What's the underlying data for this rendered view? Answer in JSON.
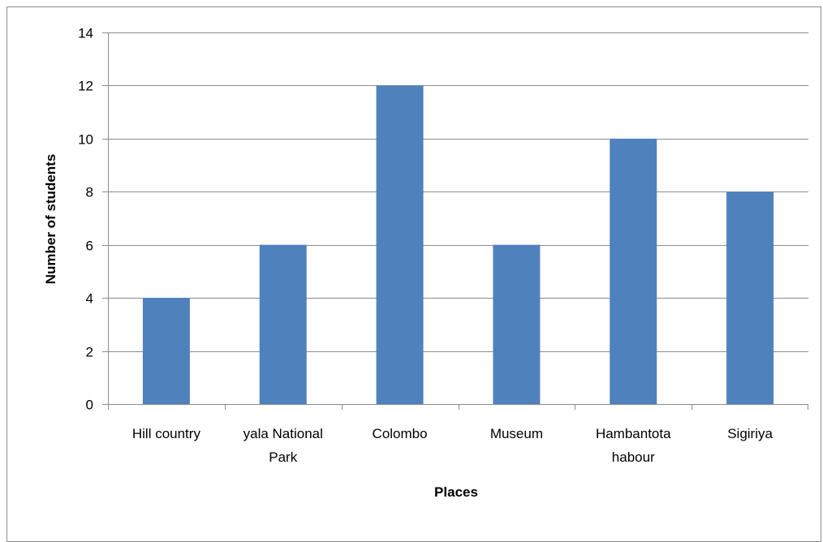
{
  "chart_data": {
    "type": "bar",
    "title": "",
    "xlabel": "Places",
    "ylabel": "Number of students",
    "categories": [
      [
        "Hill country"
      ],
      [
        "yala National",
        "Park"
      ],
      [
        "Colombo"
      ],
      [
        "Museum"
      ],
      [
        "Hambantota",
        "habour"
      ],
      [
        "Sigiriya"
      ]
    ],
    "values": [
      4,
      6,
      12,
      6,
      10,
      8
    ],
    "ylim": [
      0,
      14
    ],
    "yticks": [
      0,
      2,
      4,
      6,
      8,
      10,
      12,
      14
    ],
    "grid": true,
    "legend": "none",
    "colors": {
      "bar": "#4f81bd",
      "grid": "#8c8c8c",
      "axis": "#8c8c8c",
      "frame": "#8c8c8c"
    }
  }
}
